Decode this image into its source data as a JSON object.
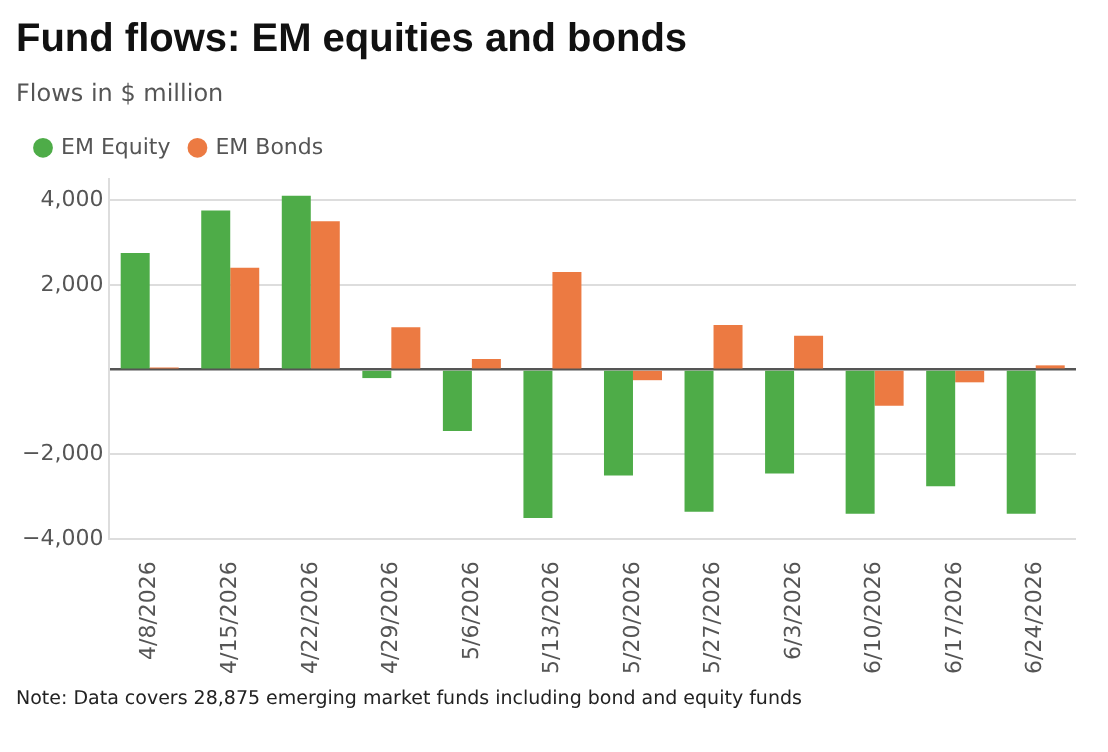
{
  "chart_data": {
    "type": "bar",
    "title": "Fund flows: EM equities and bonds",
    "subtitle": "Flows in $ million",
    "categories": [
      "4/8/2026",
      "4/15/2026",
      "4/22/2026",
      "4/29/2026",
      "5/6/2026",
      "5/13/2026",
      "5/20/2026",
      "5/27/2026",
      "6/3/2026",
      "6/10/2026",
      "6/17/2026",
      "6/24/2026"
    ],
    "series": [
      {
        "name": "EM Equity",
        "color": "#4eac48",
        "values": [
          2750,
          3750,
          4100,
          -200,
          -1450,
          -3500,
          -2500,
          -3350,
          -2450,
          -3400,
          -2750,
          -3400
        ]
      },
      {
        "name": "EM Bonds",
        "color": "#ec7a42",
        "values": [
          50,
          2400,
          3500,
          1000,
          250,
          2300,
          -250,
          1050,
          800,
          -850,
          -300,
          100
        ]
      }
    ],
    "ylim": [
      -4000,
      4500
    ],
    "yticks": [
      {
        "value": -4000,
        "label": "−4,000"
      },
      {
        "value": -2000,
        "label": "−2,000"
      },
      {
        "value": 0,
        "label": null
      },
      {
        "value": 2000,
        "label": "2,000"
      },
      {
        "value": 4000,
        "label": "4,000"
      }
    ],
    "grid": "y",
    "legend": "top left",
    "annotations": [
      "Note: Data covers 28,875 emerging market funds including bond and equity funds"
    ]
  }
}
